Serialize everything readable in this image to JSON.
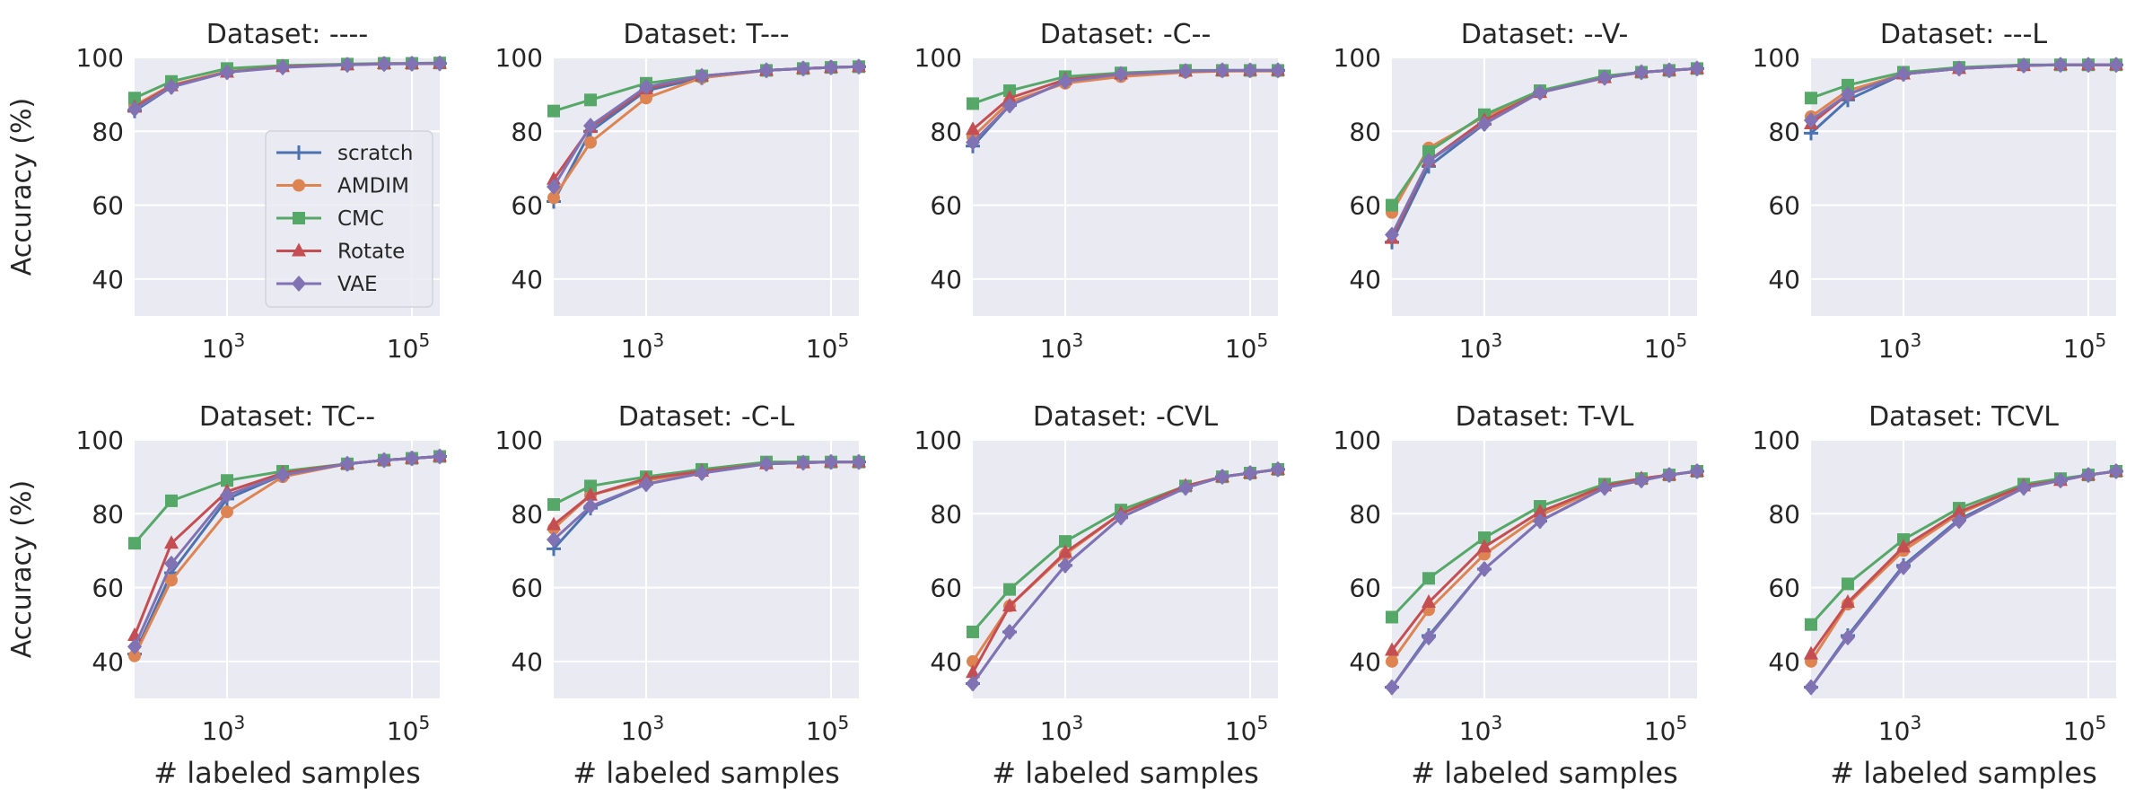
{
  "colors": {
    "plot_bg": "#eaeaf2",
    "grid": "#ffffff",
    "scratch": "#4c72b0",
    "AMDIM": "#dd8452",
    "CMC": "#55a868",
    "Rotate": "#c44e52",
    "VAE": "#8172b3"
  },
  "legend": {
    "entries": [
      "scratch",
      "AMDIM",
      "CMC",
      "Rotate",
      "VAE"
    ],
    "markers": [
      "plus",
      "circle",
      "square",
      "triangle",
      "diamond"
    ],
    "placement": "lower-right of first subplot"
  },
  "ylabel": "Accuracy (%)",
  "xlabel": "# labeled samples",
  "chart_data": [
    {
      "type": "line",
      "title": "Dataset: ----",
      "x": [
        100,
        250,
        1000,
        4000,
        20000,
        50000,
        100000,
        200000
      ],
      "xscale": "log",
      "ylim": [
        30,
        100
      ],
      "yticks": [
        40,
        60,
        80,
        100
      ],
      "xtick_labels": [
        "10^3",
        "10^5"
      ],
      "series": [
        {
          "name": "scratch",
          "values": [
            85.5,
            92.0,
            96.0,
            97.5,
            98.0,
            98.3,
            98.3,
            98.4
          ]
        },
        {
          "name": "AMDIM",
          "values": [
            87.0,
            92.5,
            96.2,
            97.5,
            98.0,
            98.3,
            98.3,
            98.4
          ]
        },
        {
          "name": "CMC",
          "values": [
            89.0,
            93.5,
            97.0,
            97.8,
            98.2,
            98.4,
            98.4,
            98.5
          ]
        },
        {
          "name": "Rotate",
          "values": [
            86.5,
            92.3,
            96.0,
            97.5,
            98.0,
            98.3,
            98.3,
            98.4
          ]
        },
        {
          "name": "VAE",
          "values": [
            86.0,
            92.0,
            96.0,
            97.3,
            98.0,
            98.2,
            98.3,
            98.4
          ]
        }
      ]
    },
    {
      "type": "line",
      "title": "Dataset: T---",
      "x": [
        100,
        250,
        1000,
        4000,
        20000,
        50000,
        100000,
        200000
      ],
      "xscale": "log",
      "ylim": [
        30,
        100
      ],
      "yticks": [
        40,
        60,
        80,
        100
      ],
      "xtick_labels": [
        "10^3",
        "10^5"
      ],
      "series": [
        {
          "name": "scratch",
          "values": [
            61.0,
            80.0,
            91.0,
            94.5,
            96.5,
            97.0,
            97.3,
            97.5
          ]
        },
        {
          "name": "AMDIM",
          "values": [
            62.0,
            77.0,
            89.0,
            94.5,
            96.5,
            97.0,
            97.3,
            97.5
          ]
        },
        {
          "name": "CMC",
          "values": [
            85.5,
            88.5,
            93.0,
            95.0,
            96.5,
            97.0,
            97.3,
            97.5
          ]
        },
        {
          "name": "Rotate",
          "values": [
            67.0,
            81.0,
            91.5,
            95.0,
            96.5,
            97.0,
            97.3,
            97.5
          ]
        },
        {
          "name": "VAE",
          "values": [
            65.0,
            81.5,
            92.0,
            95.0,
            96.5,
            97.0,
            97.3,
            97.5
          ]
        }
      ]
    },
    {
      "type": "line",
      "title": "Dataset: -C--",
      "x": [
        100,
        250,
        1000,
        4000,
        20000,
        50000,
        100000,
        200000
      ],
      "xscale": "log",
      "ylim": [
        30,
        100
      ],
      "yticks": [
        40,
        60,
        80,
        100
      ],
      "xtick_labels": [
        "10^3",
        "10^5"
      ],
      "series": [
        {
          "name": "scratch",
          "values": [
            76.0,
            87.0,
            93.5,
            95.5,
            96.3,
            96.5,
            96.5,
            96.5
          ]
        },
        {
          "name": "AMDIM",
          "values": [
            78.5,
            88.0,
            93.0,
            94.8,
            96.0,
            96.3,
            96.3,
            96.3
          ]
        },
        {
          "name": "CMC",
          "values": [
            87.5,
            91.0,
            94.8,
            95.8,
            96.5,
            96.5,
            96.5,
            96.5
          ]
        },
        {
          "name": "Rotate",
          "values": [
            80.5,
            89.0,
            94.0,
            95.5,
            96.3,
            96.4,
            96.5,
            96.5
          ]
        },
        {
          "name": "VAE",
          "values": [
            77.0,
            87.0,
            93.5,
            95.5,
            96.3,
            96.5,
            96.5,
            96.5
          ]
        }
      ]
    },
    {
      "type": "line",
      "title": "Dataset: --V-",
      "x": [
        100,
        250,
        1000,
        4000,
        20000,
        50000,
        100000,
        200000
      ],
      "xscale": "log",
      "ylim": [
        30,
        100
      ],
      "yticks": [
        40,
        60,
        80,
        100
      ],
      "xtick_labels": [
        "10^3",
        "10^5"
      ],
      "series": [
        {
          "name": "scratch",
          "values": [
            50.0,
            70.5,
            82.0,
            90.5,
            94.5,
            96.0,
            96.5,
            97.0
          ]
        },
        {
          "name": "AMDIM",
          "values": [
            58.0,
            75.5,
            84.0,
            90.5,
            94.5,
            96.0,
            96.5,
            97.0
          ]
        },
        {
          "name": "CMC",
          "values": [
            60.0,
            74.5,
            84.5,
            91.0,
            95.0,
            96.0,
            96.5,
            97.0
          ]
        },
        {
          "name": "Rotate",
          "values": [
            51.0,
            72.0,
            83.0,
            90.5,
            94.5,
            96.0,
            96.5,
            97.0
          ]
        },
        {
          "name": "VAE",
          "values": [
            52.0,
            72.0,
            82.0,
            90.5,
            94.5,
            96.0,
            96.5,
            97.0
          ]
        }
      ]
    },
    {
      "type": "line",
      "title": "Dataset: ---L",
      "x": [
        100,
        250,
        1000,
        4000,
        20000,
        50000,
        100000,
        200000
      ],
      "xscale": "log",
      "ylim": [
        30,
        100
      ],
      "yticks": [
        40,
        60,
        80,
        100
      ],
      "xtick_labels": [
        "10^3",
        "10^5"
      ],
      "series": [
        {
          "name": "scratch",
          "values": [
            79.5,
            88.5,
            95.5,
            97.0,
            97.8,
            98.0,
            98.0,
            98.0
          ]
        },
        {
          "name": "AMDIM",
          "values": [
            84.0,
            91.0,
            95.5,
            97.0,
            97.8,
            98.0,
            98.0,
            98.0
          ]
        },
        {
          "name": "CMC",
          "values": [
            89.0,
            92.5,
            96.0,
            97.3,
            98.0,
            98.0,
            98.0,
            98.0
          ]
        },
        {
          "name": "Rotate",
          "values": [
            82.0,
            90.0,
            95.5,
            97.0,
            97.8,
            98.0,
            98.0,
            98.0
          ]
        },
        {
          "name": "VAE",
          "values": [
            83.0,
            90.0,
            95.5,
            97.0,
            97.8,
            98.0,
            98.0,
            98.0
          ]
        }
      ]
    },
    {
      "type": "line",
      "title": "Dataset: TC--",
      "x": [
        100,
        250,
        1000,
        4000,
        20000,
        50000,
        100000,
        200000
      ],
      "xscale": "log",
      "ylim": [
        30,
        100
      ],
      "yticks": [
        40,
        60,
        80,
        100
      ],
      "xtick_labels": [
        "10^3",
        "10^5"
      ],
      "series": [
        {
          "name": "scratch",
          "values": [
            42.0,
            64.0,
            84.0,
            90.5,
            93.5,
            94.5,
            95.0,
            95.5
          ]
        },
        {
          "name": "AMDIM",
          "values": [
            41.5,
            62.0,
            80.5,
            90.0,
            93.5,
            94.5,
            95.0,
            95.5
          ]
        },
        {
          "name": "CMC",
          "values": [
            72.0,
            83.5,
            89.0,
            91.5,
            93.5,
            94.5,
            95.0,
            95.5
          ]
        },
        {
          "name": "Rotate",
          "values": [
            47.0,
            72.0,
            86.0,
            91.0,
            93.5,
            94.5,
            95.0,
            95.5
          ]
        },
        {
          "name": "VAE",
          "values": [
            44.0,
            66.5,
            85.0,
            90.5,
            93.5,
            94.5,
            95.0,
            95.5
          ]
        }
      ]
    },
    {
      "type": "line",
      "title": "Dataset: -C-L",
      "x": [
        100,
        250,
        1000,
        4000,
        20000,
        50000,
        100000,
        200000
      ],
      "xscale": "log",
      "ylim": [
        30,
        100
      ],
      "yticks": [
        40,
        60,
        80,
        100
      ],
      "xtick_labels": [
        "10^3",
        "10^5"
      ],
      "series": [
        {
          "name": "scratch",
          "values": [
            70.5,
            81.5,
            88.0,
            91.0,
            93.5,
            93.8,
            94.0,
            94.0
          ]
        },
        {
          "name": "AMDIM",
          "values": [
            76.0,
            85.0,
            89.0,
            91.5,
            93.5,
            93.8,
            94.0,
            94.0
          ]
        },
        {
          "name": "CMC",
          "values": [
            82.5,
            87.5,
            90.0,
            92.0,
            94.0,
            94.0,
            94.0,
            94.0
          ]
        },
        {
          "name": "Rotate",
          "values": [
            77.0,
            85.0,
            89.5,
            91.5,
            93.5,
            93.8,
            94.0,
            94.0
          ]
        },
        {
          "name": "VAE",
          "values": [
            73.0,
            82.0,
            88.0,
            91.0,
            93.5,
            93.8,
            94.0,
            94.0
          ]
        }
      ]
    },
    {
      "type": "line",
      "title": "Dataset: -CVL",
      "x": [
        100,
        250,
        1000,
        4000,
        20000,
        50000,
        100000,
        200000
      ],
      "xscale": "log",
      "ylim": [
        30,
        100
      ],
      "yticks": [
        40,
        60,
        80,
        100
      ],
      "xtick_labels": [
        "10^3",
        "10^5"
      ],
      "series": [
        {
          "name": "scratch",
          "values": [
            34.0,
            48.0,
            66.0,
            79.0,
            87.0,
            90.0,
            91.0,
            92.0
          ]
        },
        {
          "name": "AMDIM",
          "values": [
            40.0,
            55.0,
            69.0,
            80.0,
            87.5,
            90.0,
            91.0,
            92.0
          ]
        },
        {
          "name": "CMC",
          "values": [
            48.0,
            59.5,
            72.5,
            81.0,
            87.5,
            90.0,
            91.0,
            92.0
          ]
        },
        {
          "name": "Rotate",
          "values": [
            37.0,
            55.0,
            69.5,
            80.0,
            87.5,
            90.0,
            91.0,
            92.0
          ]
        },
        {
          "name": "VAE",
          "values": [
            34.0,
            48.0,
            66.0,
            79.0,
            87.0,
            90.0,
            91.0,
            92.0
          ]
        }
      ]
    },
    {
      "type": "line",
      "title": "Dataset: T-VL",
      "x": [
        100,
        250,
        1000,
        4000,
        20000,
        50000,
        100000,
        200000
      ],
      "xscale": "log",
      "ylim": [
        30,
        100
      ],
      "yticks": [
        40,
        60,
        80,
        100
      ],
      "xtick_labels": [
        "10^3",
        "10^5"
      ],
      "series": [
        {
          "name": "scratch",
          "values": [
            33.0,
            47.0,
            65.0,
            78.0,
            87.0,
            89.0,
            90.5,
            91.5
          ]
        },
        {
          "name": "AMDIM",
          "values": [
            40.0,
            54.0,
            69.0,
            79.5,
            87.5,
            89.5,
            90.5,
            91.5
          ]
        },
        {
          "name": "CMC",
          "values": [
            52.0,
            62.5,
            73.5,
            82.0,
            88.0,
            89.5,
            90.5,
            91.5
          ]
        },
        {
          "name": "Rotate",
          "values": [
            43.0,
            56.0,
            71.0,
            80.5,
            87.5,
            89.5,
            90.5,
            91.5
          ]
        },
        {
          "name": "VAE",
          "values": [
            33.0,
            46.5,
            65.0,
            78.0,
            87.0,
            89.0,
            90.5,
            91.5
          ]
        }
      ]
    },
    {
      "type": "line",
      "title": "Dataset: TCVL",
      "x": [
        100,
        250,
        1000,
        4000,
        20000,
        50000,
        100000,
        200000
      ],
      "xscale": "log",
      "ylim": [
        30,
        100
      ],
      "yticks": [
        40,
        60,
        80,
        100
      ],
      "xtick_labels": [
        "10^3",
        "10^5"
      ],
      "series": [
        {
          "name": "scratch",
          "values": [
            33.0,
            47.0,
            66.0,
            78.5,
            87.0,
            89.0,
            90.5,
            91.5
          ]
        },
        {
          "name": "AMDIM",
          "values": [
            40.0,
            55.5,
            70.0,
            80.0,
            87.5,
            89.0,
            90.5,
            91.5
          ]
        },
        {
          "name": "CMC",
          "values": [
            50.0,
            61.0,
            73.0,
            81.5,
            88.0,
            89.5,
            90.5,
            91.5
          ]
        },
        {
          "name": "Rotate",
          "values": [
            42.0,
            56.0,
            71.0,
            80.5,
            87.5,
            89.0,
            90.5,
            91.5
          ]
        },
        {
          "name": "VAE",
          "values": [
            33.0,
            46.5,
            65.5,
            78.0,
            87.0,
            89.0,
            90.5,
            91.5
          ]
        }
      ]
    }
  ]
}
